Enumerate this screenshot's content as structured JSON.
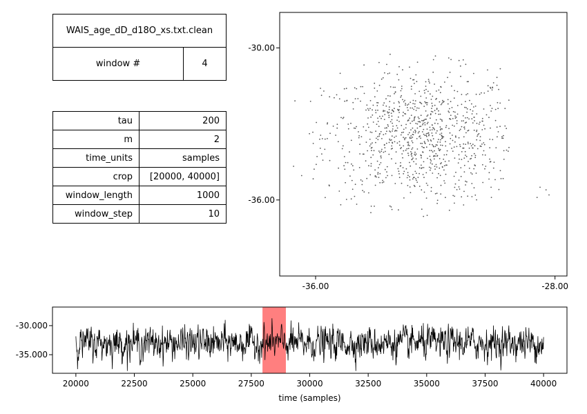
{
  "info": {
    "filename": "WAIS_age_dD_d18O_xs.txt.clean",
    "window_label": "window #",
    "window_value": "4",
    "params": [
      {
        "key": "tau",
        "value": "200"
      },
      {
        "key": "m",
        "value": "2"
      },
      {
        "key": "time_units",
        "value": "samples"
      },
      {
        "key": "crop",
        "value": "[20000, 40000]"
      },
      {
        "key": "window_length",
        "value": "1000"
      },
      {
        "key": "window_step",
        "value": "10"
      }
    ]
  },
  "chart_data": [
    {
      "type": "scatter",
      "title": "",
      "xlabel": "",
      "ylabel": "",
      "xlim": [
        -37.2,
        -27.6
      ],
      "ylim": [
        -39.0,
        -28.6
      ],
      "xticks": [
        -36,
        -28
      ],
      "xtick_labels": [
        "-36.00",
        "-28.00"
      ],
      "yticks": [
        -30,
        -36
      ],
      "ytick_labels": [
        "-30.00",
        "-36.00"
      ],
      "point_color": "#555555",
      "n_points": 1000,
      "center": [
        -32.5,
        -33.5
      ],
      "spread": [
        1.6,
        1.3
      ],
      "outliers": [
        [
          -30.0,
          -35.2
        ],
        [
          -28.6,
          -35.9
        ],
        [
          -28.3,
          -35.6
        ],
        [
          -28.2,
          -35.8
        ],
        [
          -28.5,
          -35.5
        ]
      ],
      "grid": false
    },
    {
      "type": "line",
      "title": "",
      "xlabel": "time (samples)",
      "ylabel": "",
      "xlim": [
        19000,
        41000
      ],
      "ylim": [
        -38.2,
        -26.8
      ],
      "xticks": [
        20000,
        22500,
        25000,
        27500,
        30000,
        32500,
        35000,
        37500,
        40000
      ],
      "xtick_labels": [
        "20000",
        "22500",
        "25000",
        "27500",
        "30000",
        "32500",
        "35000",
        "37500",
        "40000"
      ],
      "yticks": [
        -30,
        -35
      ],
      "ytick_labels": [
        "-30.000",
        "-35.000"
      ],
      "x_start": 20000,
      "x_end": 40000,
      "mean": -33.0,
      "std": 1.3,
      "line_color": "#000000",
      "highlight": {
        "x0": 27980,
        "x1": 28980,
        "color": "#ff7f7f"
      },
      "grid": false
    }
  ]
}
